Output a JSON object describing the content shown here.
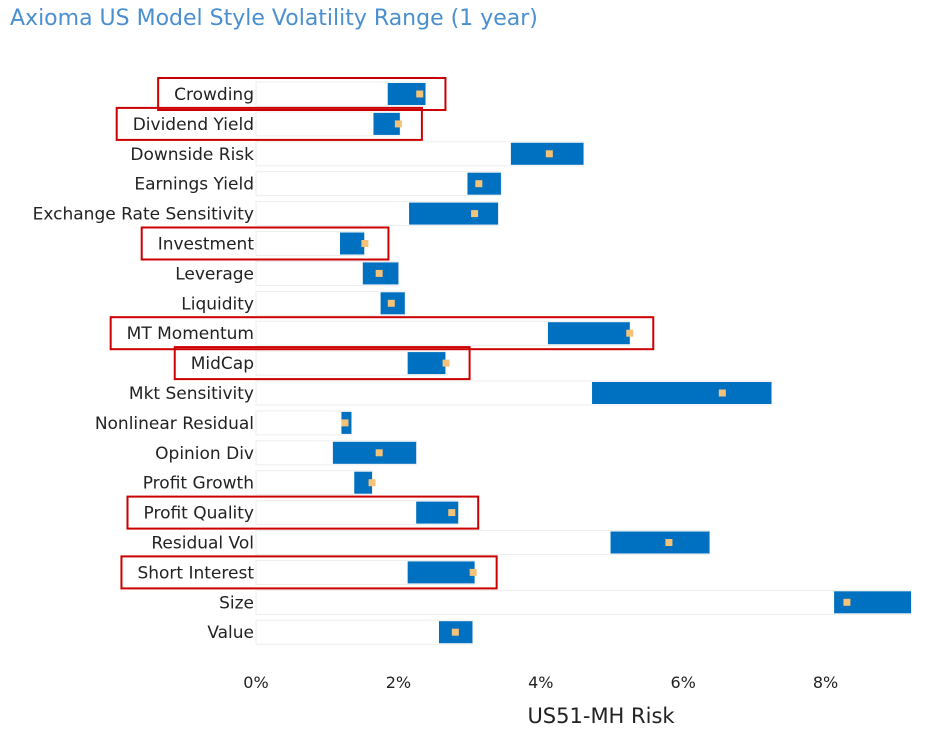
{
  "chart_data": {
    "type": "bar",
    "subtype": "floating-range",
    "title": "Axioma US Model Style Volatility Range (1 year)",
    "xlabel": "US51-MH Risk",
    "ylabel": "",
    "xlim": [
      0,
      9.2
    ],
    "x_ticks": [
      0,
      2,
      4,
      6,
      8
    ],
    "x_tick_labels": [
      "0%",
      "2%",
      "4%",
      "6%",
      "8%"
    ],
    "categories": [
      "Crowding",
      "Dividend Yield",
      "Downside Risk",
      "Earnings Yield",
      "Exchange Rate Sensitivity",
      "Investment",
      "Leverage",
      "Liquidity",
      "MT Momentum",
      "MidCap",
      "Mkt Sensitivity",
      "Nonlinear Residual",
      "Opinion Div",
      "Profit Growth",
      "Profit Quality",
      "Residual Vol",
      "Short Interest",
      "Size",
      "Value"
    ],
    "series": [
      {
        "name": "",
        "kind": "range",
        "color": "#0070c0",
        "low": [
          1.85,
          1.65,
          3.58,
          2.97,
          2.15,
          1.18,
          1.5,
          1.75,
          4.1,
          2.13,
          4.72,
          1.2,
          1.08,
          1.38,
          2.25,
          4.98,
          2.13,
          8.12,
          2.57
        ],
        "high": [
          2.38,
          2.02,
          4.6,
          3.44,
          3.4,
          1.52,
          2.0,
          2.09,
          5.25,
          2.66,
          7.24,
          1.34,
          2.25,
          1.63,
          2.84,
          6.37,
          3.07,
          9.2,
          3.04
        ]
      },
      {
        "name": "",
        "kind": "marker",
        "color": "#f5c27a",
        "values": [
          2.3,
          2.0,
          4.12,
          3.13,
          3.07,
          1.53,
          1.73,
          1.9,
          5.25,
          2.67,
          6.55,
          1.25,
          1.73,
          1.63,
          2.75,
          5.8,
          3.05,
          8.3,
          2.8
        ]
      }
    ],
    "highlighted": [
      "Crowding",
      "Dividend Yield",
      "Investment",
      "MT Momentum",
      "MidCap",
      "Profit Quality",
      "Short Interest"
    ],
    "highlight_color": "#cc0000",
    "grid": false,
    "legend": "none"
  }
}
